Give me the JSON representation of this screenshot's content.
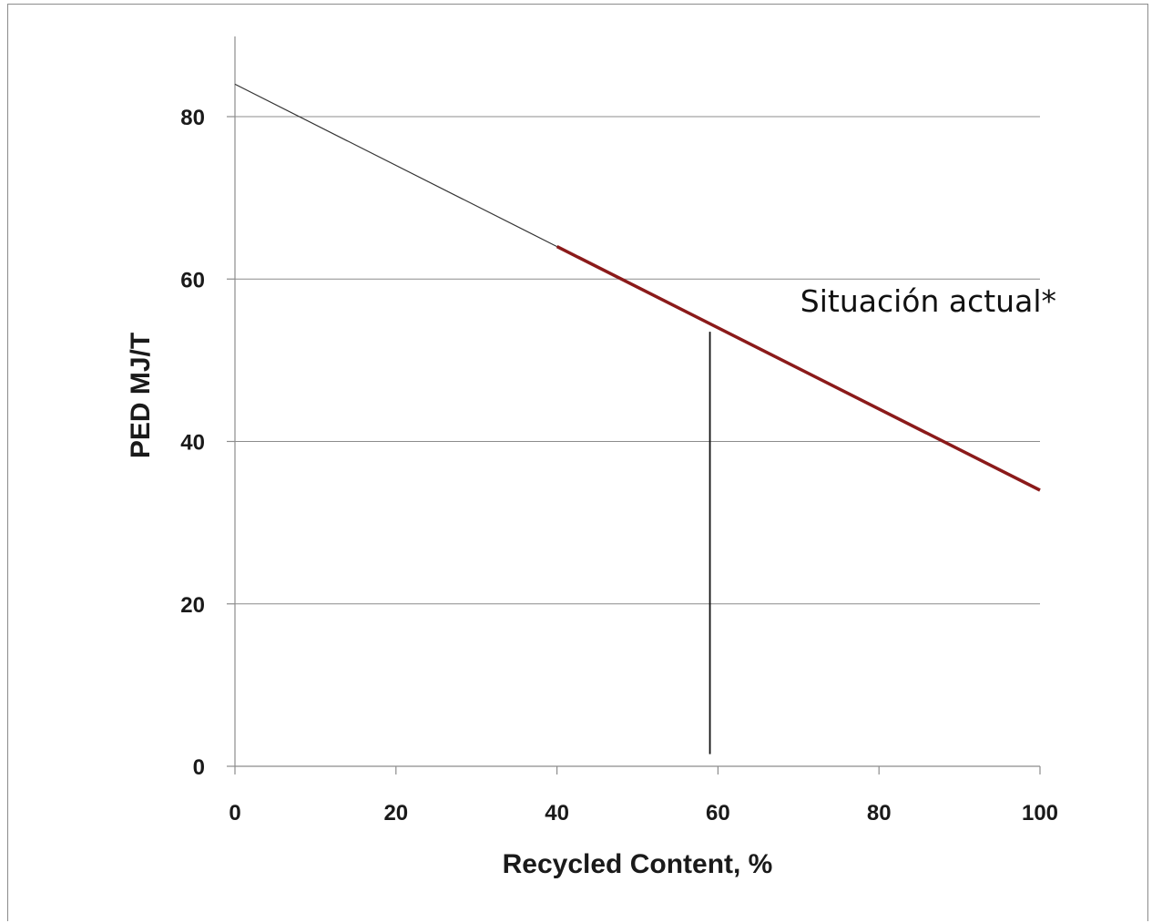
{
  "chart_data": {
    "type": "line",
    "title": "",
    "xlabel": "Recycled Content, %",
    "ylabel": "PED MJ/T",
    "xlim": [
      0,
      100
    ],
    "ylim": [
      0,
      90
    ],
    "x_ticks": [
      0,
      20,
      40,
      60,
      80,
      100
    ],
    "y_ticks": [
      0,
      20,
      40,
      60,
      80
    ],
    "grid": "horizontal",
    "series": [
      {
        "color": "#333333",
        "points": [
          [
            0,
            84
          ],
          [
            40,
            64
          ]
        ]
      },
      {
        "color": "#8b1a1a",
        "points": [
          [
            40,
            64
          ],
          [
            100,
            34
          ]
        ]
      }
    ],
    "annotations": [
      {
        "text": "Situación actual*",
        "x": 59,
        "y_from": 1.5,
        "y_to": 53.5
      }
    ]
  }
}
